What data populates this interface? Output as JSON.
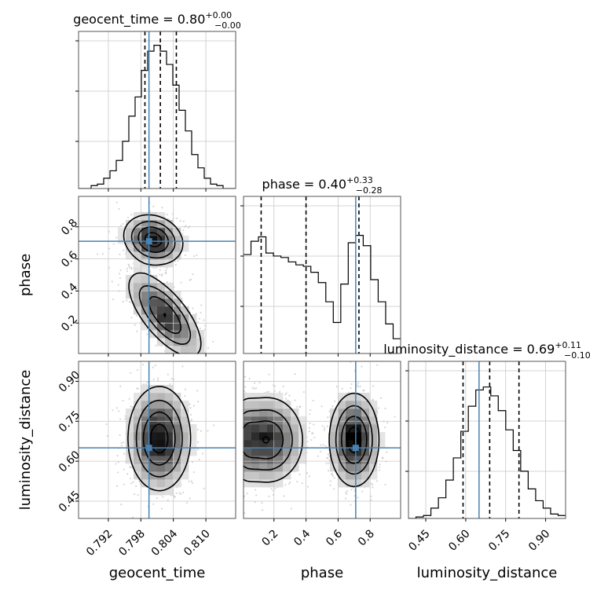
{
  "chart_data": {
    "type": "corner",
    "parameters": [
      "geocent_time",
      "phase",
      "luminosity_distance"
    ],
    "axis_labels": [
      "geocent_time",
      "phase",
      "luminosity_distance"
    ],
    "truths": [
      0.7995,
      0.71,
      0.65
    ],
    "truth_color": "#4682b4",
    "ranges": [
      [
        0.7865,
        0.8155
      ],
      [
        0.01,
        0.99
      ],
      [
        0.385,
        0.975
      ]
    ],
    "ticks": {
      "geocent_time": {
        "values": [
          0.792,
          0.798,
          0.804,
          0.81
        ],
        "labels": [
          "0.792",
          "0.798",
          "0.804",
          "0.810"
        ]
      },
      "phase": {
        "values": [
          0.2,
          0.4,
          0.6,
          0.8
        ],
        "labels": [
          "0.2",
          "0.4",
          "0.6",
          "0.8"
        ]
      },
      "luminosity_distance": {
        "values": [
          0.45,
          0.6,
          0.75,
          0.9
        ],
        "labels": [
          "0.45",
          "0.60",
          "0.75",
          "0.90"
        ]
      }
    },
    "titles": [
      {
        "param": "geocent_time",
        "prefix": "geocent_time = ",
        "median": "0.80",
        "upper": "+0.00",
        "lower": "−0.00"
      },
      {
        "param": "phase",
        "prefix": "phase = ",
        "median": "0.40",
        "upper": "+0.33",
        "lower": "−0.28"
      },
      {
        "param": "luminosity_distance",
        "prefix": "luminosity_distance = ",
        "median": "0.69",
        "upper": "+0.11",
        "lower": "−0.10"
      }
    ],
    "quantiles": {
      "geocent_time": [
        0.79875,
        0.8016,
        0.80455
      ],
      "phase": [
        0.12,
        0.4,
        0.73
      ],
      "luminosity_distance": [
        0.59,
        0.69,
        0.8
      ]
    },
    "histograms": {
      "geocent_time": {
        "edges_range": [
          0.7865,
          0.8155
        ],
        "counts": [
          0,
          0,
          0.02,
          0.03,
          0.07,
          0.12,
          0.19,
          0.32,
          0.49,
          0.62,
          0.8,
          0.93,
          0.97,
          0.93,
          0.84,
          0.7,
          0.53,
          0.39,
          0.23,
          0.14,
          0.07,
          0.03,
          0.02,
          0,
          0
        ]
      },
      "phase": {
        "edges_range": [
          0.01,
          0.99
        ],
        "counts": [
          0.67,
          0.76,
          0.79,
          0.68,
          0.66,
          0.65,
          0.62,
          0.6,
          0.59,
          0.55,
          0.48,
          0.35,
          0.21,
          0.47,
          0.75,
          0.8,
          0.73,
          0.5,
          0.35,
          0.2,
          0.1
        ]
      },
      "luminosity_distance": {
        "edges_range": [
          0.385,
          0.975
        ],
        "counts": [
          0.0,
          0.01,
          0.02,
          0.07,
          0.14,
          0.26,
          0.41,
          0.59,
          0.76,
          0.87,
          0.89,
          0.83,
          0.73,
          0.6,
          0.46,
          0.32,
          0.2,
          0.12,
          0.07,
          0.03,
          0.02
        ]
      }
    },
    "contour_levels": [
      "0.5-sigma",
      "1-sigma",
      "1.5-sigma",
      "2-sigma"
    ],
    "ylim_hist_note": "1D histograms normalized to peak",
    "grid": true
  }
}
